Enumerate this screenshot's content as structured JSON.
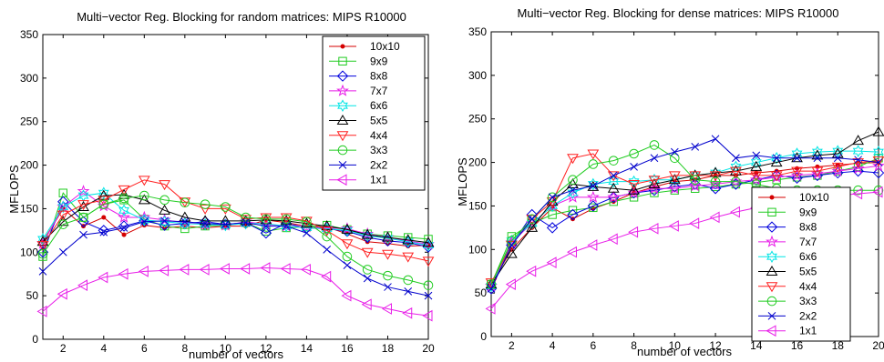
{
  "chart_data": [
    {
      "type": "line",
      "title": "Multi−vector Reg. Blocking for random matrices: MIPS R10000",
      "xlabel": "number of vectors",
      "ylabel": "MFLOPS",
      "xlim": [
        1,
        20
      ],
      "ylim": [
        0,
        350
      ],
      "xticks": [
        2,
        4,
        6,
        8,
        10,
        12,
        14,
        16,
        18,
        20
      ],
      "yticks": [
        0,
        50,
        100,
        150,
        200,
        250,
        300,
        350
      ],
      "grid": false,
      "legend_position": "top-right",
      "x": [
        1,
        2,
        3,
        4,
        5,
        6,
        7,
        8,
        9,
        10,
        11,
        12,
        13,
        14,
        15,
        16,
        17,
        18,
        19,
        20
      ],
      "series": [
        {
          "name": "10x10",
          "color": "#d40000",
          "marker": "dot",
          "values": [
            112,
            150,
            130,
            140,
            120,
            131,
            128,
            130,
            128,
            130,
            130,
            137,
            134,
            130,
            129,
            121,
            112,
            110,
            107,
            108
          ]
        },
        {
          "name": "9x9",
          "color": "#22cc22",
          "marker": "square",
          "values": [
            95,
            168,
            140,
            155,
            160,
            138,
            130,
            127,
            130,
            131,
            134,
            124,
            128,
            129,
            131,
            126,
            121,
            119,
            117,
            115
          ]
        },
        {
          "name": "8x8",
          "color": "#0000dd",
          "marker": "diamond",
          "values": [
            100,
            158,
            135,
            125,
            130,
            136,
            131,
            133,
            135,
            132,
            134,
            122,
            133,
            128,
            127,
            124,
            117,
            113,
            111,
            106
          ]
        },
        {
          "name": "7x7",
          "color": "#e81ee8",
          "marker": "star",
          "values": [
            110,
            152,
            170,
            153,
            140,
            140,
            137,
            134,
            132,
            131,
            135,
            132,
            130,
            129,
            128,
            127,
            121,
            117,
            113,
            109
          ]
        },
        {
          "name": "6x6",
          "color": "#00e5e5",
          "marker": "hexagram",
          "values": [
            115,
            152,
            165,
            168,
            148,
            137,
            135,
            133,
            132,
            131,
            133,
            133,
            130,
            128,
            127,
            125,
            119,
            116,
            112,
            108
          ]
        },
        {
          "name": "5x5",
          "color": "#000000",
          "marker": "triangle-up",
          "values": [
            112,
            135,
            152,
            165,
            166,
            160,
            148,
            140,
            136,
            136,
            136,
            137,
            136,
            133,
            130,
            126,
            120,
            117,
            114,
            111
          ]
        },
        {
          "name": "4x4",
          "color": "#ff2020",
          "marker": "triangle-down",
          "values": [
            108,
            143,
            155,
            160,
            172,
            183,
            178,
            158,
            150,
            150,
            138,
            140,
            140,
            136,
            125,
            110,
            100,
            98,
            95,
            90
          ]
        },
        {
          "name": "3x3",
          "color": "#22cc22",
          "marker": "circle",
          "values": [
            98,
            132,
            140,
            155,
            162,
            165,
            160,
            157,
            155,
            152,
            140,
            138,
            138,
            135,
            118,
            95,
            80,
            73,
            68,
            62
          ]
        },
        {
          "name": "2x2",
          "color": "#0000cc",
          "marker": "x",
          "values": [
            78,
            100,
            120,
            123,
            128,
            135,
            136,
            135,
            133,
            132,
            134,
            130,
            130,
            122,
            103,
            85,
            70,
            60,
            55,
            50
          ]
        },
        {
          "name": "1x1",
          "color": "#e81ee8",
          "marker": "triangle-left",
          "values": [
            32,
            52,
            62,
            71,
            75,
            78,
            79,
            80,
            80,
            81,
            81,
            82,
            81,
            80,
            72,
            50,
            40,
            35,
            30,
            27
          ]
        }
      ]
    },
    {
      "type": "line",
      "title": "Multi−vector Reg. Blocking for dense matrices: MIPS R10000",
      "xlabel": "number of vectors",
      "ylabel": "MFLOPS",
      "xlim": [
        1,
        20
      ],
      "ylim": [
        0,
        350
      ],
      "xticks": [
        2,
        4,
        6,
        8,
        10,
        12,
        14,
        16,
        18,
        20
      ],
      "yticks": [
        0,
        50,
        100,
        150,
        200,
        250,
        300,
        350
      ],
      "grid": false,
      "legend_position": "bottom-right",
      "x": [
        1,
        2,
        3,
        4,
        5,
        6,
        7,
        8,
        9,
        10,
        11,
        12,
        13,
        14,
        15,
        16,
        17,
        18,
        19,
        20
      ],
      "series": [
        {
          "name": "10x10",
          "color": "#d40000",
          "marker": "dot",
          "values": [
            60,
            100,
            125,
            148,
            135,
            147,
            155,
            165,
            172,
            178,
            180,
            185,
            185,
            188,
            190,
            193,
            195,
            197,
            199,
            200
          ]
        },
        {
          "name": "9x9",
          "color": "#22cc22",
          "marker": "square",
          "values": [
            60,
            115,
            130,
            140,
            145,
            148,
            155,
            160,
            165,
            168,
            170,
            172,
            175,
            177,
            180,
            183,
            185,
            190,
            195,
            205
          ]
        },
        {
          "name": "8x8",
          "color": "#0000dd",
          "marker": "diamond",
          "values": [
            55,
            105,
            140,
            125,
            140,
            150,
            160,
            165,
            168,
            172,
            175,
            170,
            175,
            180,
            185,
            182,
            185,
            188,
            190,
            188
          ]
        },
        {
          "name": "7x7",
          "color": "#e81ee8",
          "marker": "star",
          "values": [
            58,
            108,
            130,
            150,
            160,
            160,
            160,
            165,
            170,
            170,
            173,
            175,
            178,
            180,
            183,
            185,
            187,
            190,
            193,
            196
          ]
        },
        {
          "name": "6x6",
          "color": "#00e5e5",
          "marker": "hexagram",
          "values": [
            58,
            110,
            130,
            150,
            165,
            175,
            178,
            178,
            180,
            180,
            185,
            188,
            195,
            200,
            205,
            210,
            212,
            213,
            213,
            212
          ]
        },
        {
          "name": "5x5",
          "color": "#000000",
          "marker": "triangle-up",
          "values": [
            60,
            95,
            125,
            155,
            175,
            172,
            170,
            168,
            175,
            180,
            185,
            188,
            190,
            195,
            200,
            205,
            208,
            210,
            225,
            235
          ]
        },
        {
          "name": "4x4",
          "color": "#ff2020",
          "marker": "triangle-down",
          "values": [
            62,
            105,
            135,
            155,
            205,
            210,
            185,
            175,
            180,
            185,
            185,
            185,
            190,
            185,
            185,
            190,
            190,
            195,
            200,
            202
          ]
        },
        {
          "name": "3x3",
          "color": "#22cc22",
          "marker": "circle",
          "values": [
            60,
            110,
            135,
            160,
            180,
            198,
            202,
            210,
            220,
            205,
            180,
            178,
            178,
            175,
            170,
            168,
            168,
            168,
            168,
            168
          ]
        },
        {
          "name": "2x2",
          "color": "#0000cc",
          "marker": "x",
          "values": [
            55,
            105,
            135,
            160,
            168,
            173,
            185,
            195,
            205,
            212,
            218,
            227,
            205,
            208,
            205,
            205,
            205,
            205,
            203,
            200
          ]
        },
        {
          "name": "1x1",
          "color": "#e81ee8",
          "marker": "triangle-left",
          "values": [
            32,
            60,
            75,
            85,
            97,
            105,
            112,
            120,
            124,
            127,
            130,
            137,
            143,
            148,
            153,
            157,
            160,
            162,
            164,
            166
          ]
        }
      ]
    }
  ]
}
